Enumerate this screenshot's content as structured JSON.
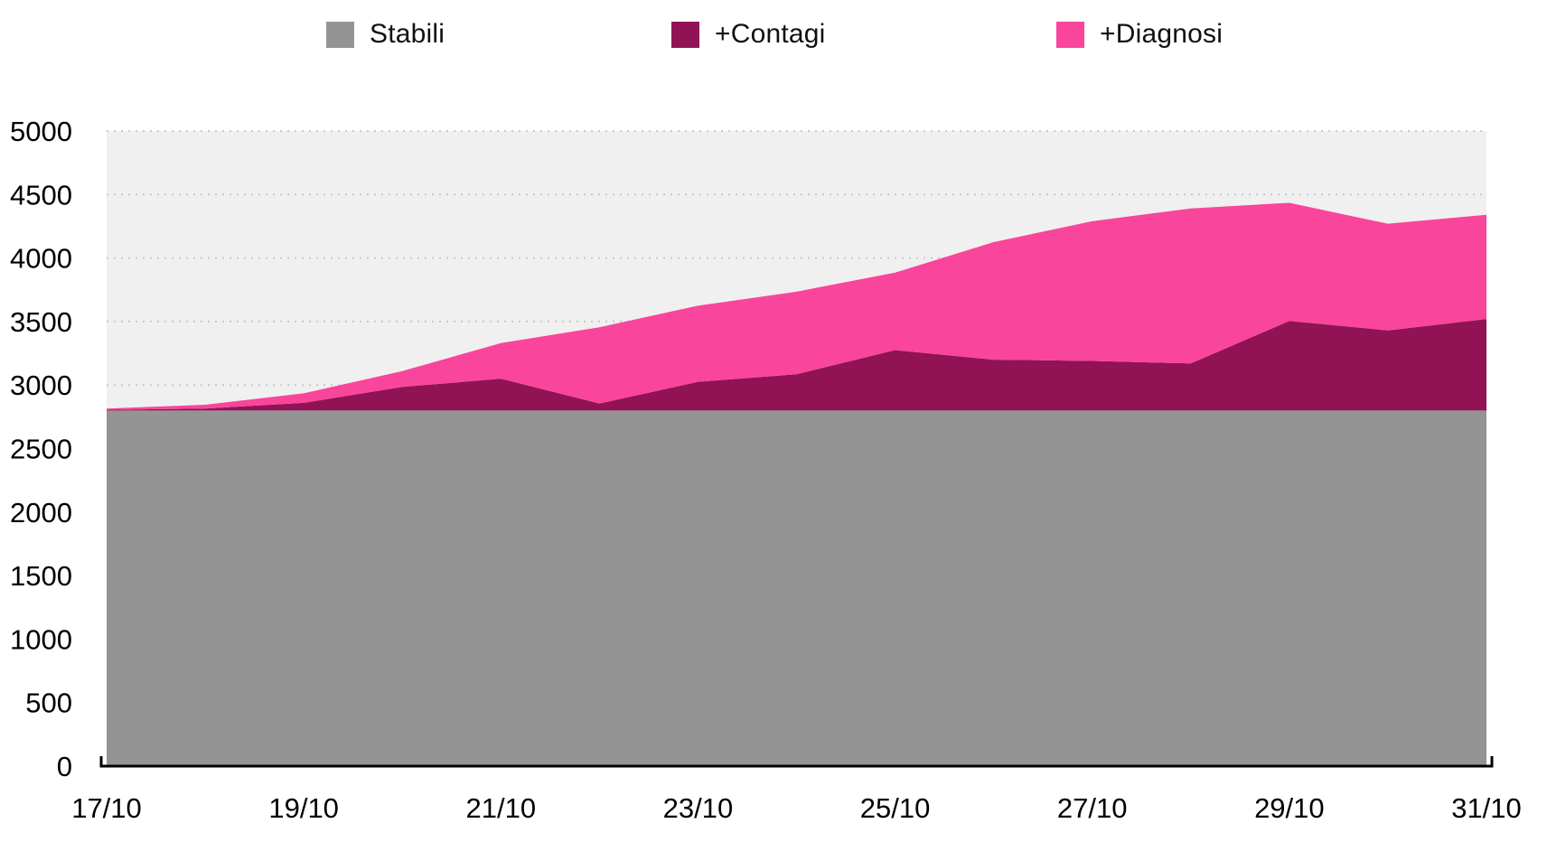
{
  "legend": {
    "items": [
      {
        "name": "stabili",
        "label": "Stabili",
        "color": "#949494"
      },
      {
        "name": "contagi",
        "label": "+Contagi",
        "color": "#911355"
      },
      {
        "name": "diagnosi",
        "label": "+Diagnosi",
        "color": "#F9459B"
      }
    ]
  },
  "chart_data": {
    "type": "area",
    "stacked": true,
    "title": "",
    "xlabel": "",
    "ylabel": "",
    "categories": [
      "17/10",
      "18/10",
      "19/10",
      "20/10",
      "21/10",
      "22/10",
      "23/10",
      "24/10",
      "25/10",
      "26/10",
      "27/10",
      "28/10",
      "29/10",
      "30/10",
      "31/10"
    ],
    "x_tick_labels": [
      "17/10",
      "19/10",
      "21/10",
      "23/10",
      "25/10",
      "27/10",
      "29/10",
      "31/10"
    ],
    "x_tick_indices": [
      0,
      2,
      4,
      6,
      8,
      10,
      12,
      14
    ],
    "series": [
      {
        "name": "Stabili",
        "color": "#949494",
        "values": [
          2800,
          2800,
          2800,
          2800,
          2800,
          2800,
          2800,
          2800,
          2800,
          2800,
          2800,
          2800,
          2800,
          2800,
          2800
        ]
      },
      {
        "name": "+Contagi",
        "color": "#911355",
        "values": [
          5,
          15,
          60,
          185,
          250,
          55,
          225,
          285,
          475,
          400,
          390,
          370,
          705,
          630,
          720
        ]
      },
      {
        "name": "+Diagnosi",
        "color": "#F9459B",
        "values": [
          10,
          30,
          75,
          125,
          280,
          600,
          600,
          650,
          610,
          925,
          1100,
          1220,
          930,
          840,
          820
        ]
      }
    ],
    "stacked_totals": [
      2815,
      2845,
      2935,
      3110,
      3330,
      3455,
      3625,
      3735,
      3885,
      4125,
      4290,
      4390,
      4435,
      4270,
      4340
    ],
    "ylim": [
      0,
      5000
    ],
    "ytick_step": 500,
    "yticks": [
      0,
      500,
      1000,
      1500,
      2000,
      2500,
      3000,
      3500,
      4000,
      4500,
      5000
    ],
    "grid": "horizontal-dotted",
    "legend_position": "top",
    "colors": {
      "plot_background": "#F0F0F0",
      "gridline": "#C9C9C9",
      "axis": "#000000",
      "tick_text": "#000000"
    }
  }
}
